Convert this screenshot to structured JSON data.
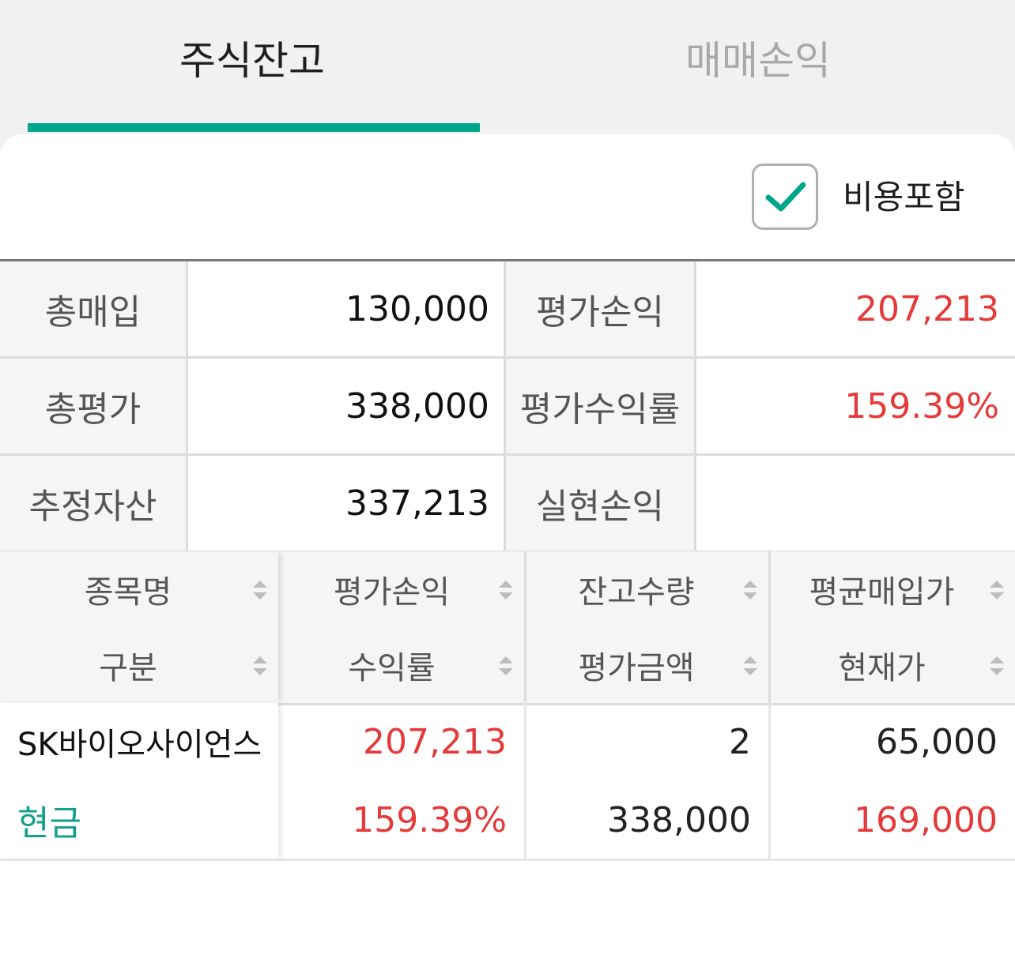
{
  "tabs": [
    {
      "label": "주식잔고",
      "active": true
    },
    {
      "label": "매매손익",
      "active": false
    }
  ],
  "options": {
    "include_fees_label": "비용포함",
    "include_fees_checked": true
  },
  "colors": {
    "accent": "#00a689",
    "profit": "#e53a3a",
    "cash": "#12a08a"
  },
  "summary": {
    "rows": [
      {
        "label1": "총매입",
        "value1": "130,000",
        "label2": "평가손익",
        "value2": "207,213"
      },
      {
        "label1": "총평가",
        "value1": "338,000",
        "label2": "평가수익률",
        "value2": "159.39%"
      },
      {
        "label1": "추정자산",
        "value1": "337,213",
        "label2": "실현손익",
        "value2": ""
      }
    ]
  },
  "table": {
    "headers": [
      [
        "종목명",
        "구분"
      ],
      [
        "평가손익",
        "수익률"
      ],
      [
        "잔고수량",
        "평가금액"
      ],
      [
        "평균매입가",
        "현재가"
      ]
    ],
    "rows": [
      {
        "name": "SK바이오사이언스",
        "type": "현금",
        "eval_pl": "207,213",
        "return_rate": "159.39%",
        "quantity": "2",
        "eval_amount": "338,000",
        "avg_price": "65,000",
        "current_price": "169,000"
      }
    ]
  }
}
